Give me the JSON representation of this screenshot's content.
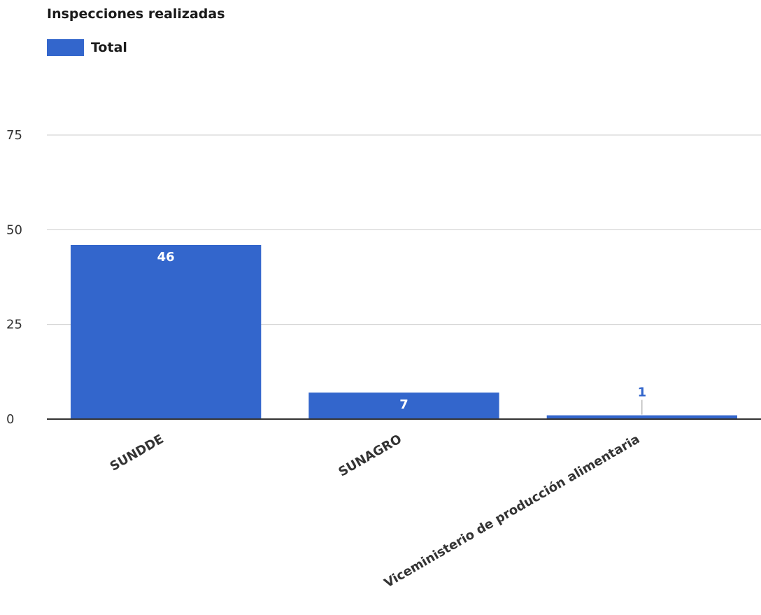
{
  "chart_data": {
    "type": "bar",
    "title": "Inspecciones realizadas",
    "categories": [
      "SUNDDE",
      "SUNAGRO",
      "Viceministerio de producción alimentaria"
    ],
    "series": [
      {
        "name": "Total",
        "values": [
          46,
          7,
          1
        ],
        "color": "#3366cc"
      }
    ],
    "data_labels": [
      "46",
      "7",
      "1"
    ],
    "ylim": [
      0,
      75
    ],
    "yticks": [
      0,
      25,
      50,
      75
    ],
    "grid": true,
    "legend": "top-left",
    "xlabel": "",
    "ylabel": ""
  },
  "colors": {
    "bar": "#3366cc",
    "grid": "#cccccc",
    "axis": "#333333",
    "inside_label": "#ffffff",
    "outside_label": "#3366cc"
  }
}
